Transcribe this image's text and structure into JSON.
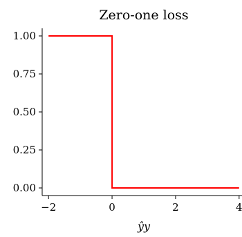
{
  "chart_data": {
    "type": "line",
    "title": "Zero-one loss",
    "xlabel": "ŷy",
    "ylabel": "",
    "xlim": [
      -2.2,
      4.2
    ],
    "ylim": [
      -0.05,
      1.05
    ],
    "xticks": [
      -2,
      0,
      2,
      4
    ],
    "xtick_labels": [
      "−2",
      "0",
      "2",
      "4"
    ],
    "yticks": [
      0.0,
      0.25,
      0.5,
      0.75,
      1.0
    ],
    "ytick_labels": [
      "0.00",
      "0.25",
      "0.50",
      "0.75",
      "1.00"
    ],
    "grid": false,
    "series": [
      {
        "color": "#ff0000",
        "x": [
          -2,
          0,
          0,
          4
        ],
        "y": [
          1,
          1,
          0,
          0
        ]
      }
    ]
  }
}
